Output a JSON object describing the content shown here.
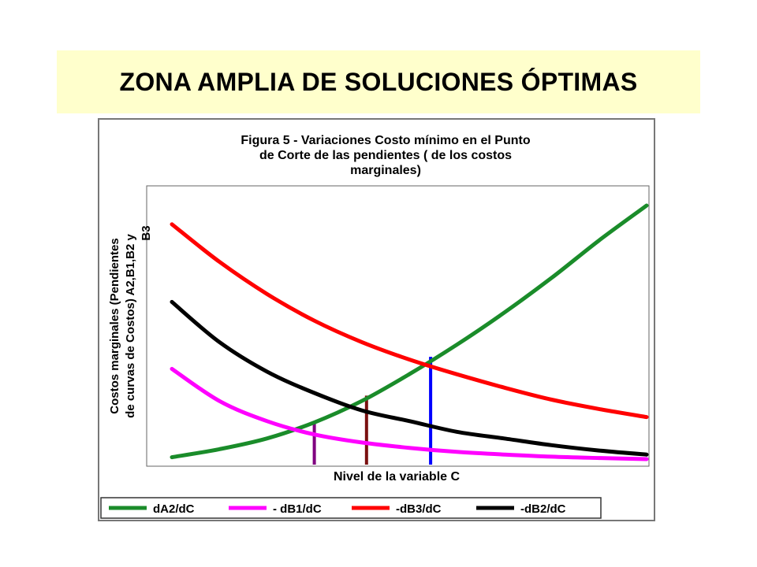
{
  "slide": {
    "title": "ZONA AMPLIA DE SOLUCIONES ÓPTIMAS"
  },
  "chart_data": {
    "type": "line",
    "title": "Figura 5 - Variaciones Costo mínimo en el Punto de Corte de las pendientes ( de los costos marginales)",
    "title_lines": [
      "Figura 5 - Variaciones Costo mínimo en el Punto",
      "de Corte de las pendientes ( de los costos",
      "marginales)"
    ],
    "xlabel": "Nivel de la variable C",
    "ylabel": "Costos marginales (Pendientes de curvas de Costos) A2,B1,B2 y B3",
    "ylabel_lines": [
      "Costos marginales (Pendientes",
      "de curvas de Costos) A2,B1,B2 y",
      "B3"
    ],
    "x_ticks_shown": false,
    "y_ticks_shown": false,
    "grid": false,
    "legend_position": "bottom",
    "xlim": [
      0,
      10
    ],
    "ylim": [
      0,
      10
    ],
    "x": [
      0,
      1,
      2,
      3,
      4,
      5,
      6,
      7,
      8,
      9,
      10
    ],
    "series": [
      {
        "name": "dA2/dC",
        "color": "#1a8c2a",
        "values": [
          0.1,
          0.4,
          0.8,
          1.4,
          2.2,
          3.2,
          4.3,
          5.5,
          6.8,
          8.2,
          9.5
        ]
      },
      {
        "name": "- dB1/dC",
        "color": "#ff00ff",
        "values": [
          3.4,
          2.2,
          1.45,
          0.95,
          0.65,
          0.45,
          0.3,
          0.2,
          0.12,
          0.07,
          0.03
        ]
      },
      {
        "name": "-dB3/dC",
        "color": "#ff0000",
        "values": [
          8.8,
          7.4,
          6.2,
          5.2,
          4.4,
          3.75,
          3.2,
          2.7,
          2.25,
          1.9,
          1.6
        ]
      },
      {
        "name": "-dB2/dC",
        "color": "#000000",
        "values": [
          5.9,
          4.4,
          3.3,
          2.5,
          1.85,
          1.45,
          1.05,
          0.8,
          0.55,
          0.35,
          0.2
        ]
      }
    ],
    "markers": [
      {
        "x": 3.0,
        "y": 1.45,
        "color": "#800080"
      },
      {
        "x": 4.1,
        "y": 2.4,
        "color": "#7a1010"
      },
      {
        "x": 5.45,
        "y": 3.85,
        "color": "#0000ff"
      }
    ]
  }
}
